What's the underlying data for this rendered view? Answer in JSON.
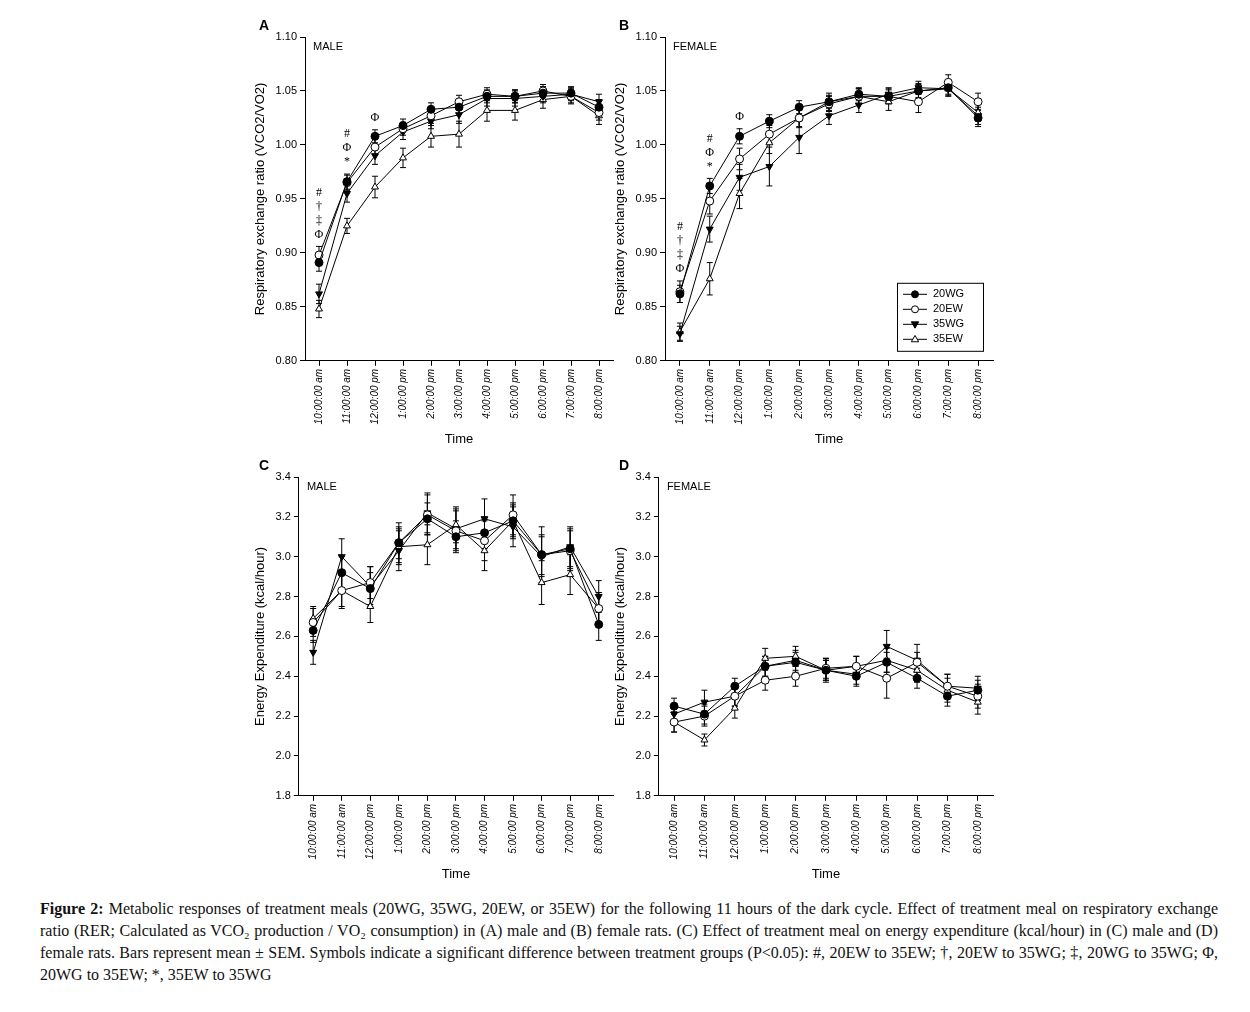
{
  "chart_data": [
    {
      "type": "line",
      "panel": "A",
      "subtitle": "MALE",
      "x_label": "Time",
      "y_label": "Respiratory exchange ratio (VCO2/VO2)",
      "categories": [
        "10:00:00 am",
        "11:00:00 am",
        "12:00:00 pm",
        "1:00:00 pm",
        "2:00:00 pm",
        "3:00:00 pm",
        "4:00:00 pm",
        "5:00:00 pm",
        "6:00:00 pm",
        "7:00:00 pm",
        "8:00:00 pm"
      ],
      "ylim": [
        0.8,
        1.1
      ],
      "yticks": [
        {
          "value": 0.8,
          "label": "0.80"
        },
        0.85,
        {
          "value": 0.9,
          "label": "0.90"
        },
        0.95,
        {
          "value": 1,
          "label": "1.00"
        },
        1.05,
        {
          "value": 1.1,
          "label": "1.10"
        }
      ],
      "grid": false,
      "series": [
        {
          "name": "20WG",
          "color": "#000000",
          "marker": "circle",
          "line_style": "solid",
          "values": [
            0.891,
            0.966,
            1.008,
            1.018,
            1.033,
            1.035,
            1.045,
            1.045,
            1.048,
            1.048,
            1.035
          ],
          "errors": [
            0.008,
            0.007,
            0.006,
            0.006,
            0.006,
            0.006,
            0.006,
            0.006,
            0.006,
            0.006,
            0.007
          ]
        },
        {
          "name": "20EW",
          "color": "#000000",
          "marker": "circle-open",
          "line_style": "solid",
          "values": [
            0.898,
            0.965,
            0.998,
            1.015,
            1.027,
            1.04,
            1.047,
            1.045,
            1.05,
            1.045,
            1.03
          ],
          "errors": [
            0.008,
            0.007,
            0.007,
            0.006,
            0.007,
            0.006,
            0.006,
            0.006,
            0.006,
            0.006,
            0.007
          ]
        },
        {
          "name": "35WG",
          "color": "#000000",
          "marker": "triangle-down",
          "line_style": "solid",
          "values": [
            0.862,
            0.955,
            0.99,
            1.012,
            1.022,
            1.028,
            1.043,
            1.043,
            1.045,
            1.047,
            1.04
          ],
          "errors": [
            0.009,
            0.008,
            0.008,
            0.007,
            0.007,
            0.008,
            0.007,
            0.007,
            0.006,
            0.006,
            0.007
          ]
        },
        {
          "name": "35EW",
          "color": "#000000",
          "marker": "triangle-open",
          "line_style": "solid",
          "values": [
            0.848,
            0.925,
            0.961,
            0.988,
            1.008,
            1.01,
            1.032,
            1.032,
            1.042,
            1.045,
            1.027
          ],
          "errors": [
            0.008,
            0.007,
            0.01,
            0.009,
            0.01,
            0.012,
            0.01,
            0.009,
            0.008,
            0.007,
            0.008
          ]
        }
      ],
      "annotations": [
        {
          "category": "10:00:00 am",
          "labels": [
            "#",
            "†",
            "‡",
            "Φ"
          ]
        },
        {
          "category": "11:00:00 am",
          "labels": [
            "#",
            "Φ",
            "*"
          ]
        },
        {
          "category": "12:00:00 pm",
          "labels": [
            "Φ"
          ]
        }
      ]
    },
    {
      "type": "line",
      "panel": "B",
      "subtitle": "FEMALE",
      "x_label": "Time",
      "y_label": "Respiratory exchange ratio (VCO2/VO2)",
      "categories": [
        "10:00:00 am",
        "11:00:00 am",
        "12:00:00 pm",
        "1:00:00 pm",
        "2:00:00 pm",
        "3:00:00 pm",
        "4:00:00 pm",
        "5:00:00 pm",
        "6:00:00 pm",
        "7:00:00 pm",
        "8:00:00 pm"
      ],
      "ylim": [
        0.8,
        1.1
      ],
      "yticks": [
        {
          "value": 0.8,
          "label": "0.80"
        },
        0.85,
        {
          "value": 0.9,
          "label": "0.90"
        },
        0.95,
        {
          "value": 1,
          "label": "1.00"
        },
        1.05,
        {
          "value": 1.1,
          "label": "1.10"
        }
      ],
      "grid": false,
      "legend": "lower right",
      "series": [
        {
          "name": "20WG",
          "color": "#000000",
          "marker": "circle",
          "line_style": "solid",
          "values": [
            0.862,
            0.962,
            1.008,
            1.022,
            1.035,
            1.04,
            1.047,
            1.045,
            1.05,
            1.053,
            1.025
          ],
          "errors": [
            0.008,
            0.007,
            0.007,
            0.006,
            0.006,
            0.006,
            0.006,
            0.006,
            0.006,
            0.006,
            0.008
          ]
        },
        {
          "name": "20EW",
          "color": "#000000",
          "marker": "circle-open",
          "line_style": "solid",
          "values": [
            0.864,
            0.948,
            0.987,
            1.01,
            1.025,
            1.038,
            1.045,
            1.045,
            1.04,
            1.058,
            1.04
          ],
          "errors": [
            0.01,
            0.012,
            0.01,
            0.008,
            0.008,
            0.007,
            0.007,
            0.007,
            0.01,
            0.007,
            0.008
          ]
        },
        {
          "name": "35WG",
          "color": "#000000",
          "marker": "triangle-down",
          "line_style": "solid",
          "values": [
            0.825,
            0.922,
            0.97,
            0.98,
            1.007,
            1.027,
            1.037,
            1.047,
            1.053,
            1.052,
            1.027
          ],
          "errors": [
            0.007,
            0.012,
            0.012,
            0.018,
            0.015,
            0.008,
            0.007,
            0.006,
            0.006,
            0.006,
            0.008
          ]
        },
        {
          "name": "35EW",
          "color": "#000000",
          "marker": "triangle-open",
          "line_style": "solid",
          "values": [
            0.827,
            0.876,
            0.955,
            1.002,
            1.025,
            1.04,
            1.045,
            1.04,
            1.05,
            1.052,
            1.03
          ],
          "errors": [
            0.008,
            0.015,
            0.014,
            0.01,
            0.009,
            0.008,
            0.007,
            0.008,
            0.007,
            0.007,
            0.008
          ]
        }
      ],
      "annotations": [
        {
          "category": "10:00:00 am",
          "labels": [
            "#",
            "†",
            "‡",
            "Φ"
          ]
        },
        {
          "category": "11:00:00 am",
          "labels": [
            "#",
            "Φ",
            "*"
          ]
        },
        {
          "category": "12:00:00 pm",
          "labels": [
            "Φ"
          ]
        }
      ]
    },
    {
      "type": "line",
      "panel": "C",
      "subtitle": "MALE",
      "x_label": "Time",
      "y_label": "Energy Expenditure (kcal/hour)",
      "categories": [
        "10:00:00 am",
        "11:00:00 am",
        "12:00:00 pm",
        "1:00:00 pm",
        "2:00:00 pm",
        "3:00:00 pm",
        "4:00:00 pm",
        "5:00:00 pm",
        "6:00:00 pm",
        "7:00:00 pm",
        "8:00:00 pm"
      ],
      "ylim": [
        1.8,
        3.4
      ],
      "yticks": [
        1.8,
        {
          "value": 2,
          "label": "2.0"
        },
        2.2,
        2.4,
        2.6,
        2.8,
        {
          "value": 3,
          "label": "3.0"
        },
        3.2,
        3.4
      ],
      "grid": false,
      "series": [
        {
          "name": "20WG",
          "color": "#000000",
          "marker": "circle",
          "line_style": "solid",
          "values": [
            2.63,
            2.92,
            2.84,
            3.07,
            3.19,
            3.1,
            3.12,
            3.18,
            3.01,
            3.04,
            2.66
          ],
          "errors": [
            0.06,
            0.08,
            0.08,
            0.08,
            0.08,
            0.08,
            0.08,
            0.08,
            0.14,
            0.1,
            0.08
          ]
        },
        {
          "name": "20EW",
          "color": "#000000",
          "marker": "circle-open",
          "line_style": "solid",
          "values": [
            2.67,
            2.83,
            2.87,
            3.07,
            3.21,
            3.13,
            3.08,
            3.21,
            3.01,
            3.03,
            2.74
          ],
          "errors": [
            0.07,
            0.08,
            0.08,
            0.1,
            0.1,
            0.1,
            0.1,
            0.1,
            0.1,
            0.1,
            0.08
          ]
        },
        {
          "name": "35WG",
          "color": "#000000",
          "marker": "triangle-down",
          "line_style": "solid",
          "values": [
            2.52,
            3.0,
            2.85,
            3.03,
            3.22,
            3.14,
            3.19,
            3.15,
            3.0,
            3.05,
            2.8
          ],
          "errors": [
            0.06,
            0.09,
            0.1,
            0.1,
            0.1,
            0.1,
            0.1,
            0.1,
            0.1,
            0.1,
            0.08
          ]
        },
        {
          "name": "35EW",
          "color": "#000000",
          "marker": "triangle-open",
          "line_style": "solid",
          "values": [
            2.69,
            2.83,
            2.75,
            3.05,
            3.06,
            3.16,
            3.03,
            3.18,
            2.87,
            2.91,
            2.74
          ],
          "errors": [
            0.06,
            0.09,
            0.08,
            0.09,
            0.1,
            0.09,
            0.1,
            0.09,
            0.11,
            0.1,
            0.08
          ]
        }
      ]
    },
    {
      "type": "line",
      "panel": "D",
      "subtitle": "FEMALE",
      "x_label": "Time",
      "y_label": "Energy Expenditure (kcal/hour)",
      "categories": [
        "10:00:00 am",
        "11:00:00 am",
        "12:00:00 pm",
        "1:00:00 pm",
        "2:00:00 pm",
        "3:00:00 pm",
        "4:00:00 pm",
        "5:00:00 pm",
        "6:00:00 pm",
        "7:00:00 pm",
        "8:00:00 pm"
      ],
      "ylim": [
        1.8,
        3.4
      ],
      "yticks": [
        1.8,
        {
          "value": 2,
          "label": "2.0"
        },
        2.2,
        2.4,
        2.6,
        2.8,
        {
          "value": 3,
          "label": "3.0"
        },
        3.2,
        3.4
      ],
      "grid": false,
      "series": [
        {
          "name": "20WG",
          "color": "#000000",
          "marker": "circle",
          "line_style": "solid",
          "values": [
            2.25,
            2.21,
            2.35,
            2.45,
            2.47,
            2.43,
            2.4,
            2.47,
            2.39,
            2.3,
            2.33
          ],
          "errors": [
            0.04,
            0.05,
            0.04,
            0.05,
            0.05,
            0.05,
            0.05,
            0.05,
            0.05,
            0.05,
            0.05
          ]
        },
        {
          "name": "20EW",
          "color": "#000000",
          "marker": "circle-open",
          "line_style": "solid",
          "values": [
            2.17,
            2.2,
            2.3,
            2.38,
            2.4,
            2.44,
            2.45,
            2.39,
            2.47,
            2.35,
            2.3
          ],
          "errors": [
            0.05,
            0.05,
            0.05,
            0.05,
            0.05,
            0.05,
            0.05,
            0.1,
            0.05,
            0.06,
            0.06
          ]
        },
        {
          "name": "35WG",
          "color": "#000000",
          "marker": "triangle-down",
          "line_style": "solid",
          "values": [
            2.21,
            2.27,
            2.3,
            2.45,
            2.48,
            2.43,
            2.41,
            2.55,
            2.48,
            2.35,
            2.34
          ],
          "errors": [
            0.05,
            0.06,
            0.05,
            0.05,
            0.05,
            0.05,
            0.05,
            0.08,
            0.08,
            0.06,
            0.06
          ]
        },
        {
          "name": "35EW",
          "color": "#000000",
          "marker": "triangle-open",
          "line_style": "solid",
          "values": [
            2.17,
            2.08,
            2.24,
            2.49,
            2.5,
            2.43,
            2.45,
            2.48,
            2.43,
            2.33,
            2.27
          ],
          "errors": [
            0.05,
            0.03,
            0.05,
            0.05,
            0.05,
            0.06,
            0.05,
            0.06,
            0.06,
            0.06,
            0.06
          ]
        }
      ]
    }
  ],
  "caption": {
    "label": "Figure 2:",
    "text": "Metabolic responses of treatment meals (20WG, 35WG, 20EW, or 35EW) for the following 11 hours of the dark cycle. Effect of treatment meal on respiratory exchange ratio (RER; Calculated as VCO₂ production / VO₂ consumption) in (A) male and (B) female rats. (C) Effect of treatment meal on energy expenditure (kcal/hour) in (C) male and (D) female rats. Bars represent mean ± SEM. Symbols indicate a significant difference between treatment groups (P<0.05): #, 20EW to 35EW; †, 20EW to 35WG; ‡, 20WG to 35WG; Φ, 20WG to 35EW; *, 35EW to 35WG"
  }
}
